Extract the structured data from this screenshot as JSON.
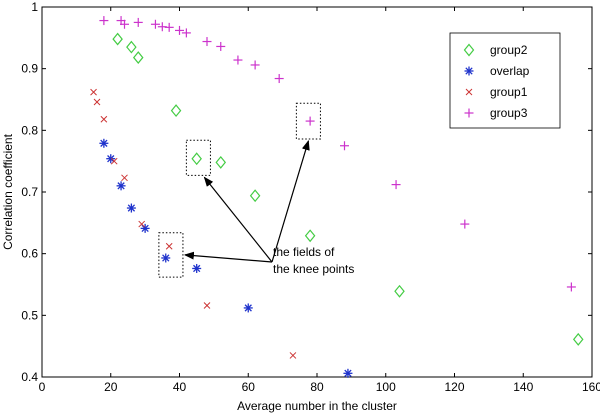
{
  "chart_data": {
    "type": "scatter",
    "xlabel": "Average number in the cluster",
    "ylabel": "Correlation coefficient",
    "xlim": [
      0,
      160
    ],
    "ylim": [
      0.4,
      1.0
    ],
    "x_ticks": [
      0,
      20,
      40,
      60,
      80,
      100,
      120,
      140,
      160
    ],
    "y_ticks": [
      0.4,
      0.5,
      0.6,
      0.7,
      0.8,
      0.9,
      1
    ],
    "legend_position": "top-right",
    "series": [
      {
        "name": "group2",
        "marker": "diamond",
        "color": "#44cc44",
        "points": [
          [
            22,
            0.948
          ],
          [
            26,
            0.935
          ],
          [
            28,
            0.918
          ],
          [
            39,
            0.832
          ],
          [
            45,
            0.754
          ],
          [
            52,
            0.748
          ],
          [
            62,
            0.694
          ],
          [
            78,
            0.629
          ],
          [
            104,
            0.539
          ],
          [
            156,
            0.461
          ]
        ]
      },
      {
        "name": "overlap",
        "marker": "star",
        "color": "#1f33cc",
        "points": [
          [
            18,
            0.779
          ],
          [
            20,
            0.754
          ],
          [
            23,
            0.71
          ],
          [
            26,
            0.674
          ],
          [
            30,
            0.641
          ],
          [
            36,
            0.593
          ],
          [
            45,
            0.576
          ],
          [
            60,
            0.512
          ],
          [
            89,
            0.406
          ]
        ]
      },
      {
        "name": "group1",
        "marker": "x",
        "color": "#cc3333",
        "points": [
          [
            15,
            0.862
          ],
          [
            16,
            0.846
          ],
          [
            18,
            0.818
          ],
          [
            21,
            0.75
          ],
          [
            24,
            0.723
          ],
          [
            29,
            0.648
          ],
          [
            37,
            0.612
          ],
          [
            48,
            0.516
          ],
          [
            73,
            0.435
          ]
        ]
      },
      {
        "name": "group3",
        "marker": "plus",
        "color": "#cc33cc",
        "points": [
          [
            18,
            0.978
          ],
          [
            23,
            0.978
          ],
          [
            24,
            0.972
          ],
          [
            28,
            0.975
          ],
          [
            33,
            0.972
          ],
          [
            35,
            0.968
          ],
          [
            37,
            0.967
          ],
          [
            40,
            0.962
          ],
          [
            42,
            0.958
          ],
          [
            48,
            0.944
          ],
          [
            52,
            0.936
          ],
          [
            57,
            0.914
          ],
          [
            62,
            0.906
          ],
          [
            69,
            0.884
          ],
          [
            78,
            0.815
          ],
          [
            88,
            0.775
          ],
          [
            103,
            0.712
          ],
          [
            123,
            0.648
          ],
          [
            154,
            0.546
          ]
        ]
      }
    ],
    "annotation": {
      "text_lines": [
        "the fields of",
        "the knee points"
      ],
      "arrows_from": [
        272,
        262
      ],
      "boxes": [
        {
          "x": [
            34,
            41
          ],
          "y": [
            0.562,
            0.634
          ]
        },
        {
          "x": [
            42,
            49
          ],
          "y": [
            0.727,
            0.784
          ]
        },
        {
          "x": [
            74,
            81
          ],
          "y": [
            0.786,
            0.844
          ]
        }
      ]
    }
  }
}
